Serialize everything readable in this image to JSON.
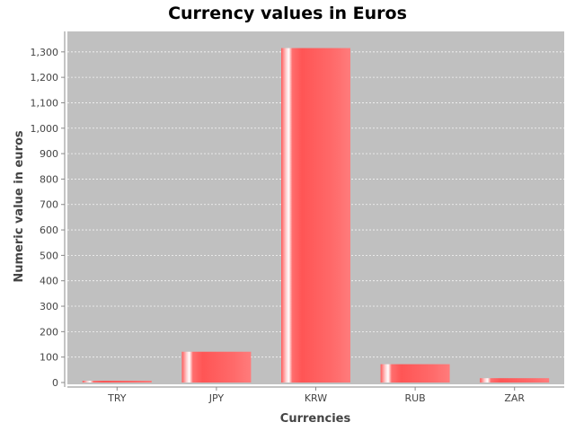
{
  "chart_data": {
    "type": "bar",
    "title": "Currency values in Euros",
    "xlabel": "Currencies",
    "ylabel": "Numeric value in euros",
    "categories": [
      "TRY",
      "JPY",
      "KRW",
      "RUB",
      "ZAR"
    ],
    "values": [
      7,
      121,
      1315,
      72,
      17
    ],
    "ylim": [
      0,
      1390
    ],
    "yticks": [
      0,
      100,
      200,
      300,
      400,
      500,
      600,
      700,
      800,
      900,
      1000,
      1100,
      1200,
      1300
    ],
    "ytick_labels": [
      "0",
      "100",
      "200",
      "300",
      "400",
      "500",
      "600",
      "700",
      "800",
      "900",
      "1,000",
      "1,100",
      "1,200",
      "1,300"
    ],
    "grid": true,
    "colors": {
      "bar": "#ff5a5a",
      "bar_highlight": "#ffffff",
      "plot_background": "#c0c0c0",
      "grid": "#ffffff"
    }
  }
}
